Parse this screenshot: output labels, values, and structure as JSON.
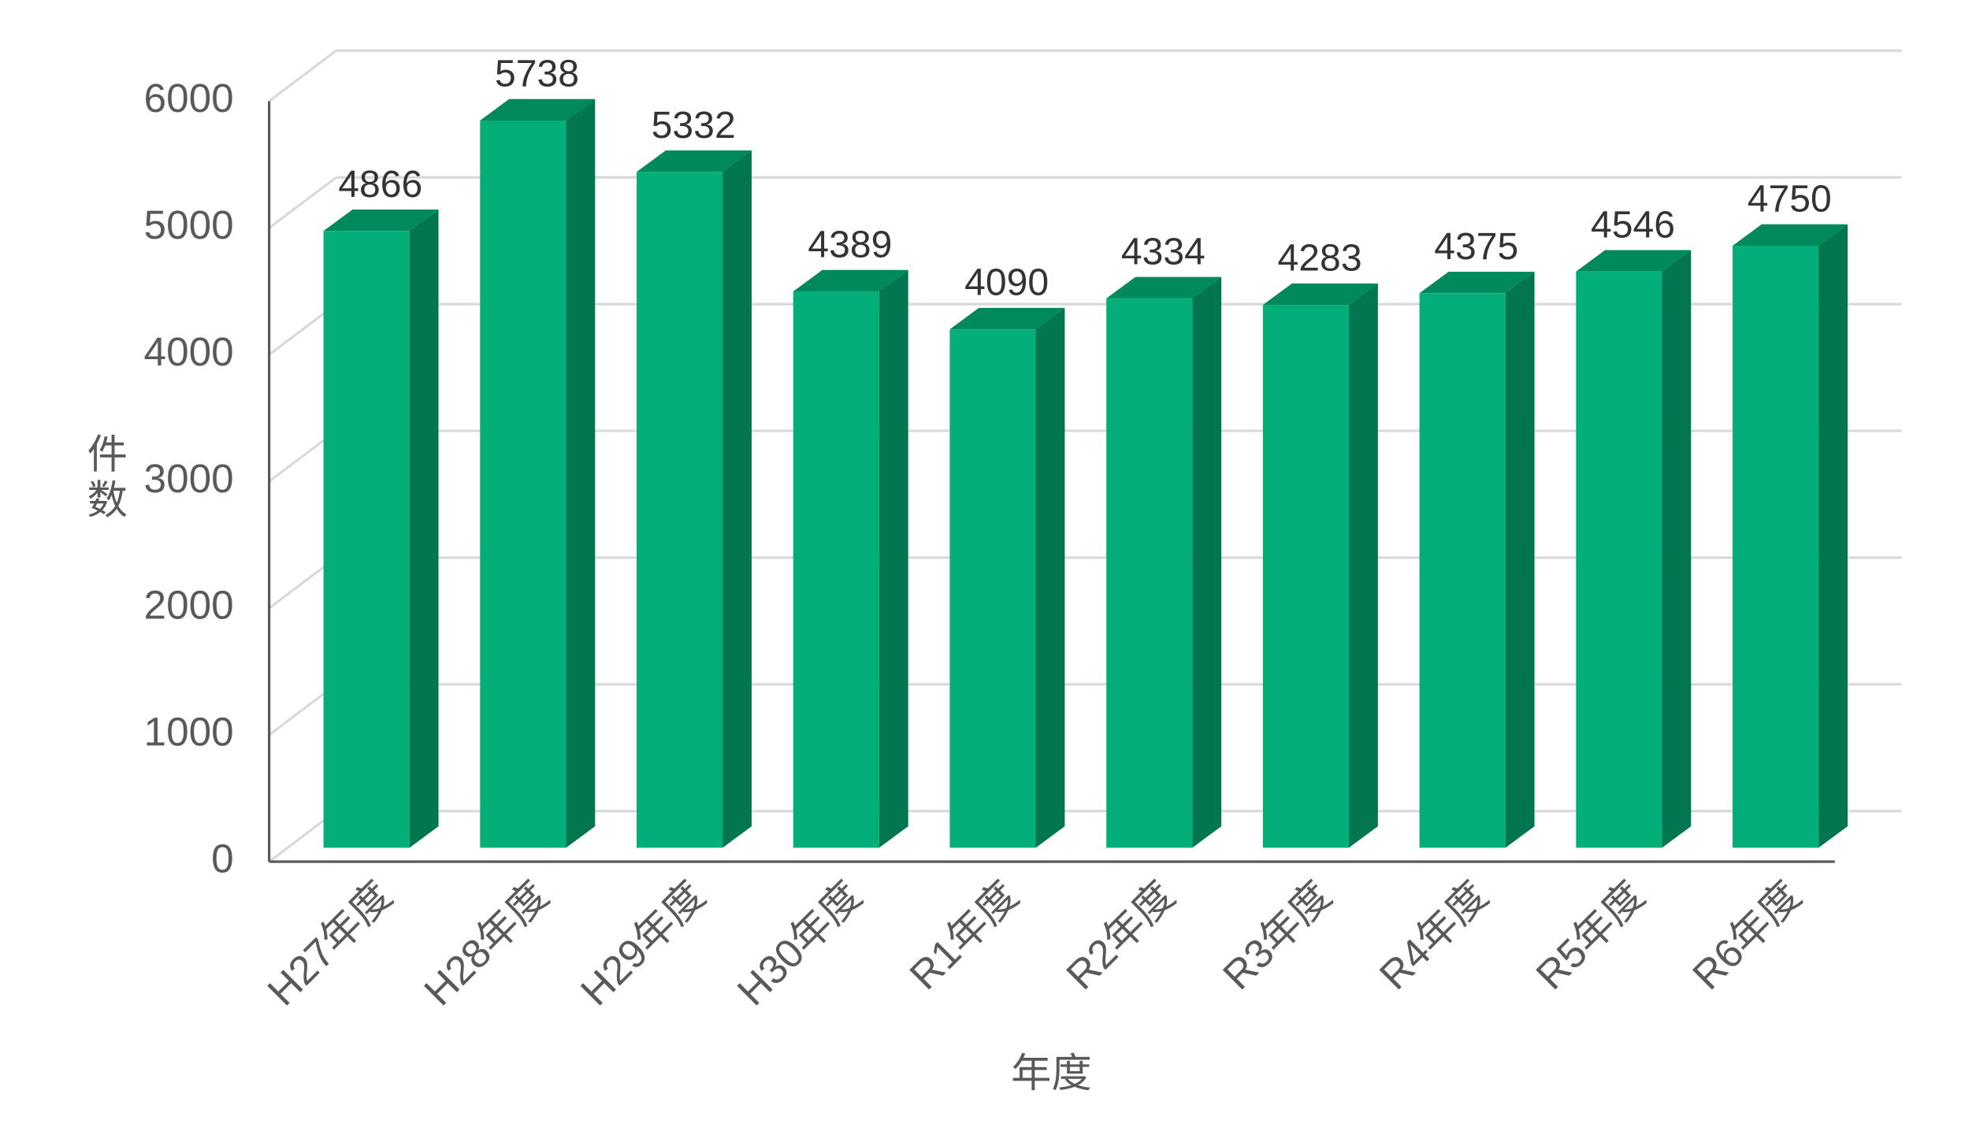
{
  "chart_data": {
    "type": "bar",
    "ylabel": "件数",
    "xlabel": "年度",
    "categories": [
      "H27年度",
      "H28年度",
      "H29年度",
      "H30年度",
      "R1年度",
      "R2年度",
      "R3年度",
      "R4年度",
      "R5年度",
      "R6年度"
    ],
    "values": [
      4866,
      5738,
      5332,
      4389,
      4090,
      4334,
      4283,
      4375,
      4546,
      4750
    ],
    "color": "#03ae78",
    "ylim": [
      0,
      6000
    ],
    "yticks": [
      0,
      1000,
      2000,
      3000,
      4000,
      5000,
      6000
    ],
    "grid": true
  }
}
